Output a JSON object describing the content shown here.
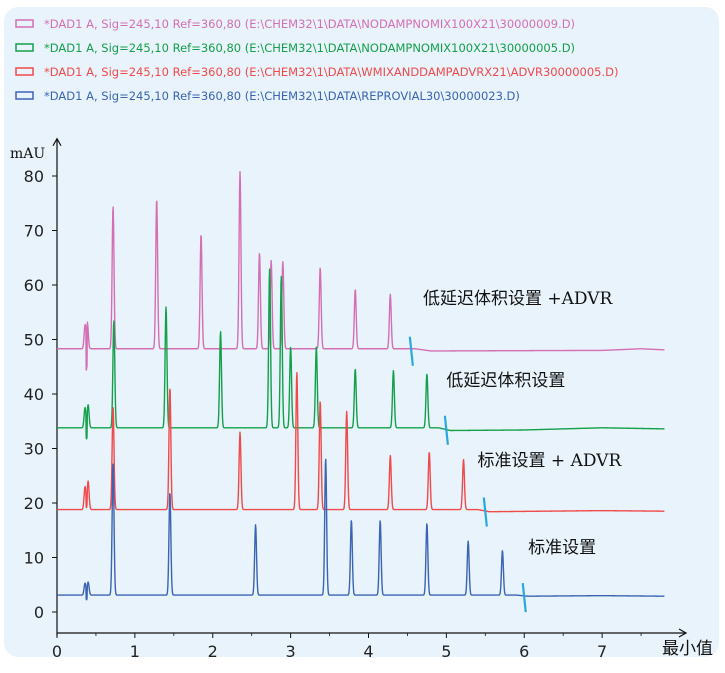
{
  "chart_data": {
    "type": "line",
    "ylabel": "mAU",
    "xlabel": "最小值",
    "xlim": [
      0,
      8
    ],
    "ylim": [
      -3,
      85
    ],
    "x_ticks": [
      "0",
      "1",
      "2",
      "3",
      "4",
      "5",
      "6",
      "7"
    ],
    "y_ticks": [
      "0",
      "10",
      "20",
      "30",
      "40",
      "50",
      "60",
      "70",
      "80"
    ],
    "grid": false,
    "legend_position": "top-left",
    "series": [
      {
        "name": "*DAD1 A, Sig=245,10 Ref=360,80 (E:\\CHEM32\\1\\DATA\\NODAMPNOMIX100X21\\30000009.D)",
        "color": "#d46fb4",
        "baseline": 48.3,
        "drift": [
          [
            0,
            48.3
          ],
          [
            4.6,
            48.3
          ],
          [
            4.8,
            47.9
          ],
          [
            7.0,
            48.0
          ],
          [
            7.5,
            48.3
          ],
          [
            7.8,
            48.1
          ]
        ],
        "peaks": [
          [
            0.36,
            52.5
          ],
          [
            0.39,
            53
          ],
          [
            0.72,
            74.5
          ],
          [
            1.28,
            75.8
          ],
          [
            1.85,
            69.4
          ],
          [
            2.35,
            80.8
          ],
          [
            2.6,
            65.9
          ],
          [
            2.75,
            64.5
          ],
          [
            2.9,
            64.3
          ],
          [
            3.38,
            63.2
          ],
          [
            3.83,
            59.2
          ],
          [
            4.28,
            58.3
          ]
        ],
        "marker_x": 4.55
      },
      {
        "name": "*DAD1 A, Sig=245,10 Ref=360,80 (E:\\CHEM32\\1\\DATA\\NODAMPNOMIX100X21\\30000005.D)",
        "color": "#14a04a",
        "baseline": 33.8,
        "drift": [
          [
            0,
            33.8
          ],
          [
            4.9,
            33.8
          ],
          [
            5.05,
            33.3
          ],
          [
            6.0,
            33.4
          ],
          [
            7.0,
            33.8
          ],
          [
            7.8,
            33.6
          ]
        ],
        "peaks": [
          [
            0.36,
            37.5
          ],
          [
            0.4,
            38
          ],
          [
            0.73,
            53.5
          ],
          [
            1.4,
            56
          ],
          [
            2.1,
            51.5
          ],
          [
            2.73,
            62.9
          ],
          [
            2.88,
            61.7
          ],
          [
            3.0,
            48.7
          ],
          [
            3.33,
            48.6
          ],
          [
            3.83,
            44.6
          ],
          [
            4.32,
            44.3
          ],
          [
            4.75,
            43.7
          ]
        ],
        "marker_x": 5.0
      },
      {
        "name": "*DAD1 A, Sig=245,10 Ref=360,80 (E:\\CHEM32\\1\\DATA\\WMIXANDDAMPADVRX21\\ADVR30000005.D)",
        "color": "#f04a4a",
        "baseline": 18.8,
        "drift": [
          [
            0,
            18.8
          ],
          [
            5.4,
            18.8
          ],
          [
            5.55,
            18.4
          ],
          [
            7.0,
            18.6
          ],
          [
            7.8,
            18.5
          ]
        ],
        "peaks": [
          [
            0.36,
            23
          ],
          [
            0.4,
            24
          ],
          [
            0.72,
            37.6
          ],
          [
            1.45,
            41.2
          ],
          [
            2.35,
            33
          ],
          [
            3.08,
            44
          ],
          [
            3.38,
            38.7
          ],
          [
            3.72,
            36.8
          ],
          [
            4.28,
            28.7
          ],
          [
            4.78,
            29.4
          ],
          [
            5.22,
            28
          ]
        ],
        "marker_x": 5.5
      },
      {
        "name": "*DAD1 A, Sig=245,10 Ref=360,80 (E:\\CHEM32\\1\\DATA\\REPROVIAL30\\30000023.D)",
        "color": "#3a64b4",
        "baseline": 3.1,
        "drift": [
          [
            0,
            3.1
          ],
          [
            5.9,
            3.1
          ],
          [
            6.05,
            2.9
          ],
          [
            7.0,
            3.0
          ],
          [
            7.8,
            2.9
          ]
        ],
        "peaks": [
          [
            0.36,
            5.3
          ],
          [
            0.4,
            5.5
          ],
          [
            0.72,
            27.3
          ],
          [
            1.45,
            22
          ],
          [
            2.55,
            16
          ],
          [
            3.45,
            28.2
          ],
          [
            3.78,
            16.9
          ],
          [
            4.15,
            16.8
          ],
          [
            4.75,
            16.3
          ],
          [
            5.28,
            13
          ],
          [
            5.72,
            11.3
          ]
        ],
        "marker_x": 6.0
      }
    ],
    "annotations": [
      {
        "text": "低延迟体积设置 +ADVR",
        "x": 4.7,
        "y": 56.5
      },
      {
        "text": "低延迟体积设置",
        "x": 5.0,
        "y": 41.5
      },
      {
        "text": "标准设置 + ADVR",
        "x": 5.4,
        "y": 26.8
      },
      {
        "text": "标准设置",
        "x": 6.05,
        "y": 10.8
      }
    ],
    "marker_color": "#29a8e0"
  }
}
